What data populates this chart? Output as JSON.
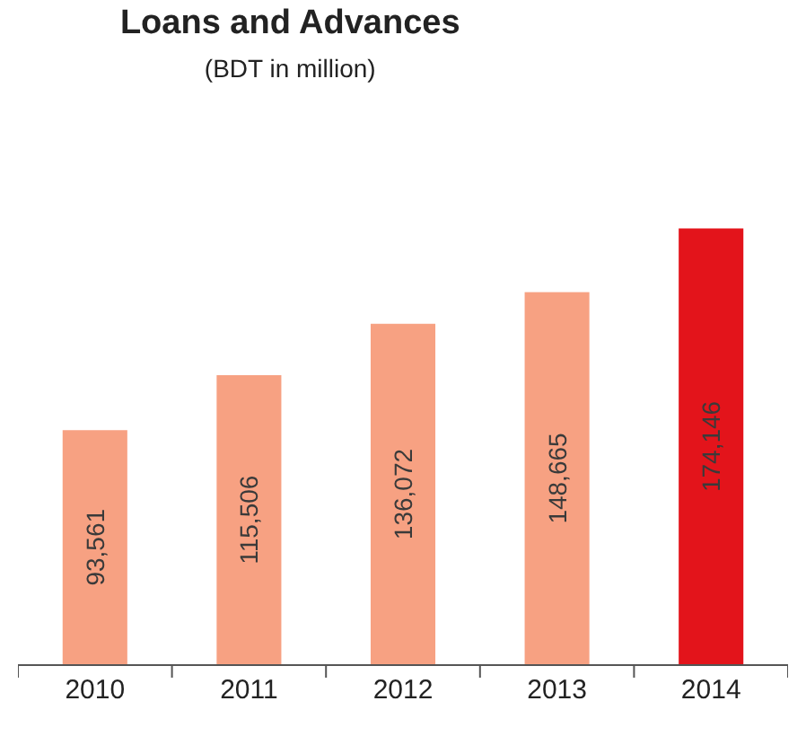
{
  "chart_data": {
    "type": "bar",
    "title": "Loans and Advances",
    "subtitle": "(BDT in million)",
    "categories": [
      "2010",
      "2011",
      "2012",
      "2013",
      "2014"
    ],
    "values": [
      93561,
      115506,
      136072,
      148665,
      174146
    ],
    "value_labels": [
      "93,561",
      "115,506",
      "136,072",
      "148,665",
      "174,146"
    ],
    "colors": [
      "#f7a182",
      "#f7a182",
      "#f7a182",
      "#f7a182",
      "#e3141b"
    ]
  }
}
